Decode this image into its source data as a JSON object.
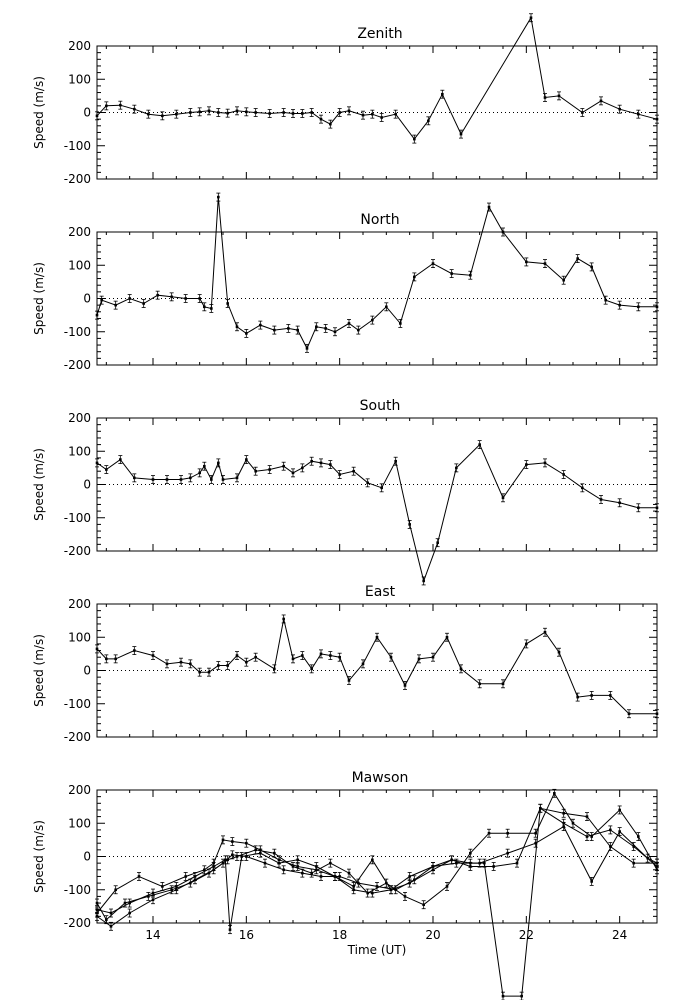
{
  "figure": {
    "xlabel": "Time (UT)",
    "x_ticks": [
      14,
      16,
      18,
      20,
      22,
      24
    ],
    "xlim": [
      12.8,
      24.8
    ]
  },
  "chart_data": [
    {
      "type": "line",
      "title": "Zenith",
      "ylabel": "Speed (m/s)",
      "ylim": [
        -200,
        200
      ],
      "y_ticks": [
        -200,
        -100,
        0,
        100,
        200
      ],
      "zero_line": "dotted",
      "series": [
        {
          "x": [
            12.8,
            13.0,
            13.3,
            13.6,
            13.9,
            14.2,
            14.5,
            14.8,
            15.0,
            15.2,
            15.4,
            15.6,
            15.8,
            16.0,
            16.2,
            16.5,
            16.8,
            17.0,
            17.2,
            17.4,
            17.6,
            17.8,
            18.0,
            18.2,
            18.5,
            18.7,
            18.9,
            19.2,
            19.6,
            19.9,
            20.2,
            20.6,
            22.1,
            22.4,
            22.7,
            23.2,
            23.6,
            24.0,
            24.4,
            24.8
          ],
          "y": [
            -10,
            20,
            22,
            10,
            -5,
            -10,
            -5,
            0,
            2,
            5,
            0,
            -2,
            5,
            2,
            0,
            -3,
            0,
            -3,
            -3,
            0,
            -20,
            -35,
            0,
            5,
            -8,
            -5,
            -15,
            -5,
            -80,
            -25,
            55,
            -65,
            285,
            45,
            50,
            0,
            35,
            10,
            -5,
            -20
          ]
        }
      ]
    },
    {
      "type": "line",
      "title": "North",
      "ylabel": "Speed (m/s)",
      "ylim": [
        -200,
        200
      ],
      "y_ticks": [
        -200,
        -100,
        0,
        100,
        200
      ],
      "zero_line": "dotted",
      "series": [
        {
          "x": [
            12.8,
            12.9,
            13.2,
            13.5,
            13.8,
            14.1,
            14.4,
            14.7,
            15.0,
            15.1,
            15.25,
            15.4,
            15.6,
            15.8,
            16.0,
            16.3,
            16.6,
            16.9,
            17.1,
            17.3,
            17.5,
            17.7,
            17.9,
            18.2,
            18.4,
            18.7,
            19.0,
            19.3,
            19.6,
            20.0,
            20.4,
            20.8,
            21.2,
            21.5,
            22.0,
            22.4,
            22.8,
            23.1,
            23.4,
            23.7,
            24.0,
            24.4,
            24.8
          ],
          "y": [
            -50,
            -5,
            -20,
            0,
            -15,
            10,
            5,
            0,
            0,
            -25,
            -30,
            305,
            -15,
            -85,
            -105,
            -80,
            -95,
            -90,
            -95,
            -150,
            -85,
            -90,
            -100,
            -75,
            -95,
            -65,
            -25,
            -75,
            65,
            105,
            75,
            70,
            275,
            200,
            110,
            105,
            55,
            120,
            95,
            -5,
            -20,
            -25,
            -25
          ]
        }
      ]
    },
    {
      "type": "line",
      "title": "South",
      "ylabel": "Speed (m/s)",
      "ylim": [
        -200,
        200
      ],
      "y_ticks": [
        -200,
        -100,
        0,
        100,
        200
      ],
      "zero_line": "dotted",
      "series": [
        {
          "x": [
            12.8,
            13.0,
            13.3,
            13.6,
            14.0,
            14.3,
            14.6,
            14.8,
            15.0,
            15.1,
            15.25,
            15.4,
            15.5,
            15.8,
            16.0,
            16.2,
            16.5,
            16.8,
            17.0,
            17.2,
            17.4,
            17.6,
            17.8,
            18.0,
            18.3,
            18.6,
            18.9,
            19.2,
            19.5,
            19.8,
            20.1,
            20.5,
            21.0,
            21.5,
            22.0,
            22.4,
            22.8,
            23.2,
            23.6,
            24.0,
            24.4,
            24.8
          ],
          "y": [
            65,
            45,
            75,
            20,
            15,
            15,
            15,
            20,
            35,
            55,
            15,
            65,
            15,
            20,
            75,
            40,
            45,
            55,
            35,
            50,
            70,
            65,
            60,
            30,
            40,
            5,
            -10,
            70,
            -120,
            -290,
            -175,
            50,
            120,
            -40,
            60,
            65,
            30,
            -10,
            -45,
            -55,
            -70,
            -70
          ]
        }
      ]
    },
    {
      "type": "line",
      "title": "East",
      "ylabel": "Speed (m/s)",
      "ylim": [
        -200,
        200
      ],
      "y_ticks": [
        -200,
        -100,
        0,
        100,
        200
      ],
      "zero_line": "dotted",
      "series": [
        {
          "x": [
            12.8,
            13.0,
            13.2,
            13.6,
            14.0,
            14.3,
            14.6,
            14.8,
            15.0,
            15.2,
            15.4,
            15.6,
            15.8,
            16.0,
            16.2,
            16.6,
            16.8,
            17.0,
            17.2,
            17.4,
            17.6,
            17.8,
            18.0,
            18.2,
            18.5,
            18.8,
            19.1,
            19.4,
            19.7,
            20.0,
            20.3,
            20.6,
            21.0,
            21.5,
            22.0,
            22.4,
            22.7,
            23.1,
            23.4,
            23.8,
            24.2,
            24.8
          ],
          "y": [
            65,
            35,
            35,
            60,
            45,
            20,
            25,
            20,
            -5,
            -5,
            15,
            15,
            45,
            25,
            40,
            5,
            155,
            35,
            45,
            5,
            50,
            45,
            40,
            -30,
            20,
            100,
            40,
            -45,
            35,
            40,
            100,
            5,
            -40,
            -40,
            80,
            115,
            55,
            -80,
            -75,
            -75,
            -130,
            -130
          ]
        }
      ]
    },
    {
      "type": "line",
      "title": "Mawson",
      "ylabel": "Speed (m/s)",
      "ylim": [
        -200,
        200
      ],
      "y_ticks": [
        -200,
        -100,
        0,
        100,
        200
      ],
      "zero_line": "dotted",
      "series": [
        {
          "x": [
            12.8,
            13.2,
            13.7,
            14.2,
            14.7,
            15.1,
            15.3,
            15.5,
            15.7,
            16.0,
            16.3,
            16.7,
            17.1,
            17.5,
            17.9,
            18.3,
            18.7,
            19.1,
            19.5,
            20.0,
            20.5,
            21.0,
            21.6,
            22.2,
            22.8,
            23.4,
            24.0,
            24.6,
            24.8
          ],
          "y": [
            -170,
            -100,
            -60,
            -90,
            -60,
            -40,
            -20,
            50,
            45,
            40,
            20,
            -10,
            -30,
            -40,
            -60,
            -100,
            -110,
            -100,
            -60,
            -30,
            -20,
            -20,
            10,
            40,
            90,
            -75,
            75,
            -5,
            -20
          ]
        },
        {
          "x": [
            12.8,
            13.0,
            13.4,
            13.9,
            14.4,
            14.8,
            15.2,
            15.5,
            15.7,
            16.0,
            16.4,
            16.8,
            17.2,
            17.6,
            18.0,
            18.4,
            18.8,
            19.2,
            19.6,
            20.0,
            20.4,
            20.8,
            21.3,
            21.8,
            22.3,
            22.8,
            23.3,
            23.8,
            24.3,
            24.8
          ],
          "y": [
            -140,
            -190,
            -140,
            -120,
            -100,
            -80,
            -50,
            -20,
            5,
            0,
            -20,
            -40,
            -50,
            -60,
            -60,
            -80,
            -90,
            -100,
            -70,
            -30,
            -10,
            -30,
            -30,
            -20,
            145,
            100,
            60,
            80,
            30,
            -30
          ]
        },
        {
          "x": [
            12.8,
            13.1,
            13.5,
            14.0,
            14.5,
            14.9,
            15.3,
            15.6,
            15.8,
            16.2,
            16.6,
            17.0,
            17.4,
            17.8,
            18.2,
            18.6,
            19.0,
            19.4,
            19.8,
            20.3,
            20.8,
            21.2,
            21.6,
            22.2,
            22.6,
            23.0,
            23.4,
            24.0,
            24.4,
            24.8
          ],
          "y": [
            -180,
            -210,
            -170,
            -130,
            -100,
            -70,
            -40,
            -10,
            0,
            20,
            10,
            -30,
            -50,
            -20,
            -50,
            -110,
            -80,
            -120,
            -145,
            -90,
            10,
            70,
            70,
            70,
            190,
            100,
            60,
            140,
            60,
            -40
          ]
        },
        {
          "x": [
            12.8,
            13.1,
            13.5,
            14.0,
            14.5,
            14.9,
            15.3,
            15.55,
            15.65,
            15.9,
            16.3,
            16.7,
            17.1,
            17.5,
            17.9,
            18.3,
            18.7,
            19.1,
            19.5,
            20.0,
            20.4,
            20.8,
            21.1,
            21.5,
            21.9,
            22.3,
            22.8,
            23.3,
            23.8,
            24.3,
            24.8
          ],
          "y": [
            -160,
            -170,
            -140,
            -110,
            -90,
            -60,
            -30,
            -10,
            -220,
            0,
            10,
            -20,
            -10,
            -30,
            -60,
            -90,
            -10,
            -100,
            -80,
            -40,
            -10,
            -20,
            -20,
            -420,
            -420,
            145,
            130,
            120,
            30,
            -20,
            -20
          ]
        }
      ]
    }
  ]
}
